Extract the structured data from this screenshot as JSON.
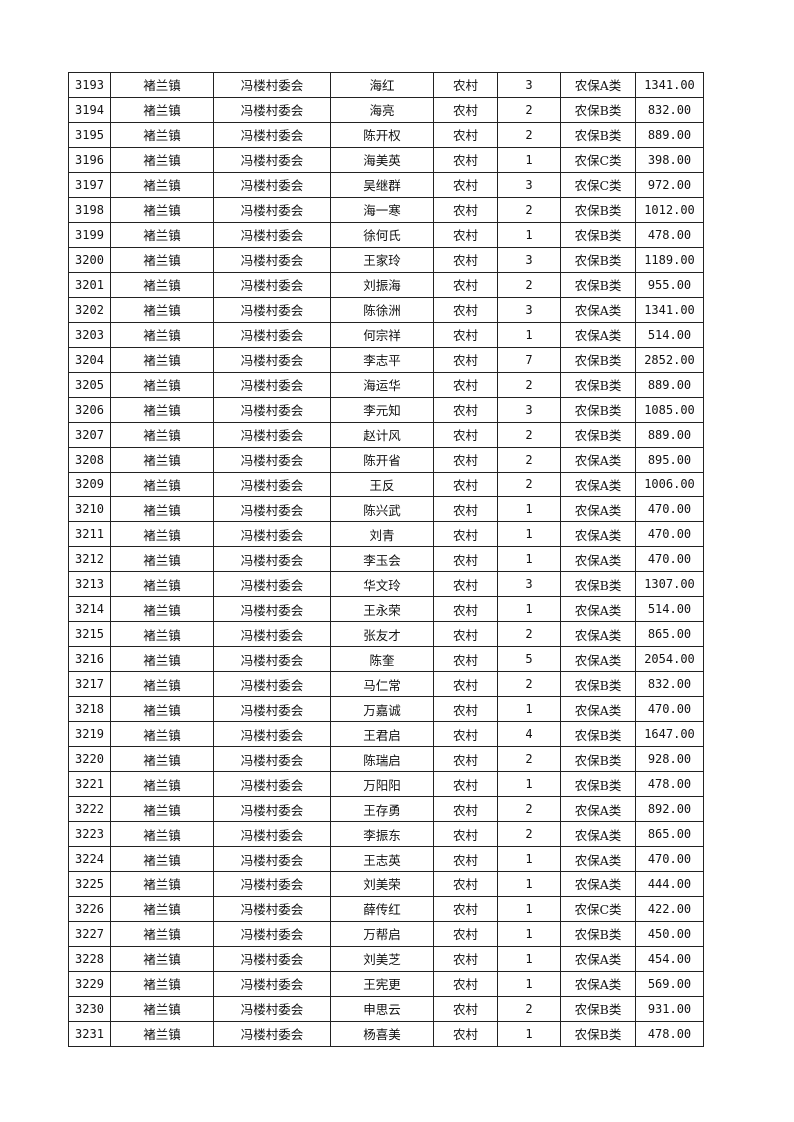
{
  "rows": [
    [
      "3193",
      "褚兰镇",
      "冯楼村委会",
      "海红",
      "农村",
      "3",
      "农保A类",
      "1341.00"
    ],
    [
      "3194",
      "褚兰镇",
      "冯楼村委会",
      "海亮",
      "农村",
      "2",
      "农保B类",
      "832.00"
    ],
    [
      "3195",
      "褚兰镇",
      "冯楼村委会",
      "陈开权",
      "农村",
      "2",
      "农保B类",
      "889.00"
    ],
    [
      "3196",
      "褚兰镇",
      "冯楼村委会",
      "海美英",
      "农村",
      "1",
      "农保C类",
      "398.00"
    ],
    [
      "3197",
      "褚兰镇",
      "冯楼村委会",
      "吴继群",
      "农村",
      "3",
      "农保C类",
      "972.00"
    ],
    [
      "3198",
      "褚兰镇",
      "冯楼村委会",
      "海一寒",
      "农村",
      "2",
      "农保B类",
      "1012.00"
    ],
    [
      "3199",
      "褚兰镇",
      "冯楼村委会",
      "徐何氏",
      "农村",
      "1",
      "农保B类",
      "478.00"
    ],
    [
      "3200",
      "褚兰镇",
      "冯楼村委会",
      "王家玲",
      "农村",
      "3",
      "农保B类",
      "1189.00"
    ],
    [
      "3201",
      "褚兰镇",
      "冯楼村委会",
      "刘振海",
      "农村",
      "2",
      "农保B类",
      "955.00"
    ],
    [
      "3202",
      "褚兰镇",
      "冯楼村委会",
      "陈徐洲",
      "农村",
      "3",
      "农保A类",
      "1341.00"
    ],
    [
      "3203",
      "褚兰镇",
      "冯楼村委会",
      "何宗祥",
      "农村",
      "1",
      "农保A类",
      "514.00"
    ],
    [
      "3204",
      "褚兰镇",
      "冯楼村委会",
      "李志平",
      "农村",
      "7",
      "农保B类",
      "2852.00"
    ],
    [
      "3205",
      "褚兰镇",
      "冯楼村委会",
      "海运华",
      "农村",
      "2",
      "农保B类",
      "889.00"
    ],
    [
      "3206",
      "褚兰镇",
      "冯楼村委会",
      "李元知",
      "农村",
      "3",
      "农保B类",
      "1085.00"
    ],
    [
      "3207",
      "褚兰镇",
      "冯楼村委会",
      "赵计风",
      "农村",
      "2",
      "农保B类",
      "889.00"
    ],
    [
      "3208",
      "褚兰镇",
      "冯楼村委会",
      "陈开省",
      "农村",
      "2",
      "农保A类",
      "895.00"
    ],
    [
      "3209",
      "褚兰镇",
      "冯楼村委会",
      "王反",
      "农村",
      "2",
      "农保A类",
      "1006.00"
    ],
    [
      "3210",
      "褚兰镇",
      "冯楼村委会",
      "陈兴武",
      "农村",
      "1",
      "农保A类",
      "470.00"
    ],
    [
      "3211",
      "褚兰镇",
      "冯楼村委会",
      "刘青",
      "农村",
      "1",
      "农保A类",
      "470.00"
    ],
    [
      "3212",
      "褚兰镇",
      "冯楼村委会",
      "李玉会",
      "农村",
      "1",
      "农保A类",
      "470.00"
    ],
    [
      "3213",
      "褚兰镇",
      "冯楼村委会",
      "华文玲",
      "农村",
      "3",
      "农保B类",
      "1307.00"
    ],
    [
      "3214",
      "褚兰镇",
      "冯楼村委会",
      "王永荣",
      "农村",
      "1",
      "农保A类",
      "514.00"
    ],
    [
      "3215",
      "褚兰镇",
      "冯楼村委会",
      "张友才",
      "农村",
      "2",
      "农保A类",
      "865.00"
    ],
    [
      "3216",
      "褚兰镇",
      "冯楼村委会",
      "陈奎",
      "农村",
      "5",
      "农保A类",
      "2054.00"
    ],
    [
      "3217",
      "褚兰镇",
      "冯楼村委会",
      "马仁常",
      "农村",
      "2",
      "农保B类",
      "832.00"
    ],
    [
      "3218",
      "褚兰镇",
      "冯楼村委会",
      "万嘉诚",
      "农村",
      "1",
      "农保A类",
      "470.00"
    ],
    [
      "3219",
      "褚兰镇",
      "冯楼村委会",
      "王君启",
      "农村",
      "4",
      "农保B类",
      "1647.00"
    ],
    [
      "3220",
      "褚兰镇",
      "冯楼村委会",
      "陈瑞启",
      "农村",
      "2",
      "农保B类",
      "928.00"
    ],
    [
      "3221",
      "褚兰镇",
      "冯楼村委会",
      "万阳阳",
      "农村",
      "1",
      "农保B类",
      "478.00"
    ],
    [
      "3222",
      "褚兰镇",
      "冯楼村委会",
      "王存勇",
      "农村",
      "2",
      "农保A类",
      "892.00"
    ],
    [
      "3223",
      "褚兰镇",
      "冯楼村委会",
      "李振东",
      "农村",
      "2",
      "农保A类",
      "865.00"
    ],
    [
      "3224",
      "褚兰镇",
      "冯楼村委会",
      "王志英",
      "农村",
      "1",
      "农保A类",
      "470.00"
    ],
    [
      "3225",
      "褚兰镇",
      "冯楼村委会",
      "刘美荣",
      "农村",
      "1",
      "农保A类",
      "444.00"
    ],
    [
      "3226",
      "褚兰镇",
      "冯楼村委会",
      "薛传红",
      "农村",
      "1",
      "农保C类",
      "422.00"
    ],
    [
      "3227",
      "褚兰镇",
      "冯楼村委会",
      "万帮启",
      "农村",
      "1",
      "农保B类",
      "450.00"
    ],
    [
      "3228",
      "褚兰镇",
      "冯楼村委会",
      "刘美芝",
      "农村",
      "1",
      "农保A类",
      "454.00"
    ],
    [
      "3229",
      "褚兰镇",
      "冯楼村委会",
      "王宪更",
      "农村",
      "1",
      "农保A类",
      "569.00"
    ],
    [
      "3230",
      "褚兰镇",
      "冯楼村委会",
      "申思云",
      "农村",
      "2",
      "农保B类",
      "931.00"
    ],
    [
      "3231",
      "褚兰镇",
      "冯楼村委会",
      "杨喜美",
      "农村",
      "1",
      "农保B类",
      "478.00"
    ]
  ]
}
